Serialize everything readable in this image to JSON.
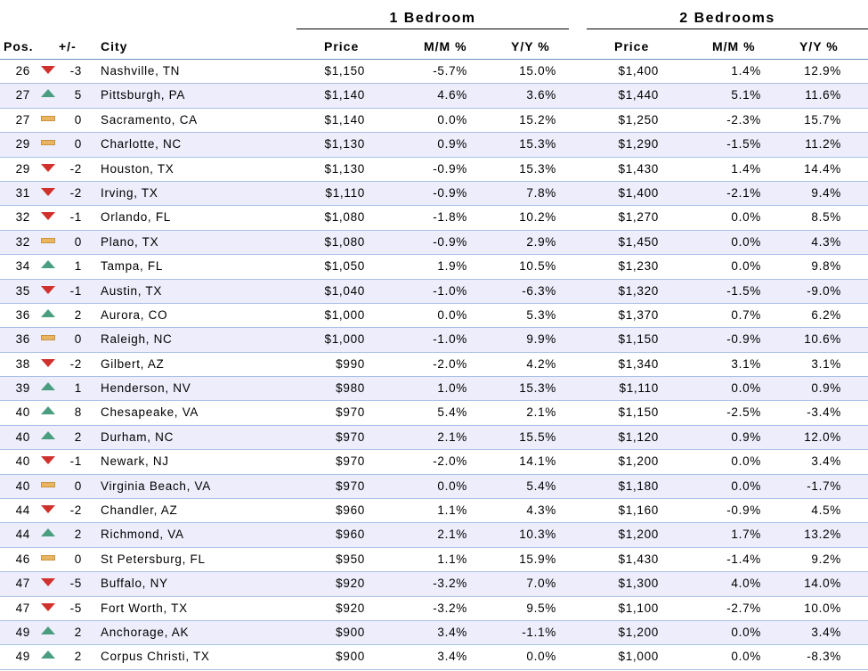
{
  "groups": {
    "one_bedroom": "1 Bedroom",
    "two_bedrooms": "2 Bedrooms"
  },
  "columns": {
    "pos": "Pos.",
    "change": "+/-",
    "city": "City",
    "price1": "Price",
    "mm1": "M/M %",
    "yy1": "Y/Y %",
    "price2": "Price",
    "mm2": "M/M %",
    "yy2": "Y/Y %"
  },
  "colors": {
    "down": "#d0312d",
    "up": "#4a9e7f",
    "flat": "#e9b561",
    "row_alt": "#ededfb",
    "rule": "#6d8fc7"
  },
  "rows": [
    {
      "pos": "26",
      "trend": "down",
      "chg": "-3",
      "city": "Nashville, TN",
      "p1": "$1,150",
      "mm1": "-5.7%",
      "yy1": "15.0%",
      "p2": "$1,400",
      "mm2": "1.4%",
      "yy2": "12.9%"
    },
    {
      "pos": "27",
      "trend": "up",
      "chg": "5",
      "city": "Pittsburgh, PA",
      "p1": "$1,140",
      "mm1": "4.6%",
      "yy1": "3.6%",
      "p2": "$1,440",
      "mm2": "5.1%",
      "yy2": "11.6%"
    },
    {
      "pos": "27",
      "trend": "flat",
      "chg": "0",
      "city": "Sacramento, CA",
      "p1": "$1,140",
      "mm1": "0.0%",
      "yy1": "15.2%",
      "p2": "$1,250",
      "mm2": "-2.3%",
      "yy2": "15.7%"
    },
    {
      "pos": "29",
      "trend": "flat",
      "chg": "0",
      "city": "Charlotte, NC",
      "p1": "$1,130",
      "mm1": "0.9%",
      "yy1": "15.3%",
      "p2": "$1,290",
      "mm2": "-1.5%",
      "yy2": "11.2%"
    },
    {
      "pos": "29",
      "trend": "down",
      "chg": "-2",
      "city": "Houston, TX",
      "p1": "$1,130",
      "mm1": "-0.9%",
      "yy1": "15.3%",
      "p2": "$1,430",
      "mm2": "1.4%",
      "yy2": "14.4%"
    },
    {
      "pos": "31",
      "trend": "down",
      "chg": "-2",
      "city": "Irving, TX",
      "p1": "$1,110",
      "mm1": "-0.9%",
      "yy1": "7.8%",
      "p2": "$1,400",
      "mm2": "-2.1%",
      "yy2": "9.4%"
    },
    {
      "pos": "32",
      "trend": "down",
      "chg": "-1",
      "city": "Orlando, FL",
      "p1": "$1,080",
      "mm1": "-1.8%",
      "yy1": "10.2%",
      "p2": "$1,270",
      "mm2": "0.0%",
      "yy2": "8.5%"
    },
    {
      "pos": "32",
      "trend": "flat",
      "chg": "0",
      "city": "Plano, TX",
      "p1": "$1,080",
      "mm1": "-0.9%",
      "yy1": "2.9%",
      "p2": "$1,450",
      "mm2": "0.0%",
      "yy2": "4.3%"
    },
    {
      "pos": "34",
      "trend": "up",
      "chg": "1",
      "city": "Tampa, FL",
      "p1": "$1,050",
      "mm1": "1.9%",
      "yy1": "10.5%",
      "p2": "$1,230",
      "mm2": "0.0%",
      "yy2": "9.8%"
    },
    {
      "pos": "35",
      "trend": "down",
      "chg": "-1",
      "city": "Austin, TX",
      "p1": "$1,040",
      "mm1": "-1.0%",
      "yy1": "-6.3%",
      "p2": "$1,320",
      "mm2": "-1.5%",
      "yy2": "-9.0%"
    },
    {
      "pos": "36",
      "trend": "up",
      "chg": "2",
      "city": "Aurora, CO",
      "p1": "$1,000",
      "mm1": "0.0%",
      "yy1": "5.3%",
      "p2": "$1,370",
      "mm2": "0.7%",
      "yy2": "6.2%"
    },
    {
      "pos": "36",
      "trend": "flat",
      "chg": "0",
      "city": "Raleigh, NC",
      "p1": "$1,000",
      "mm1": "-1.0%",
      "yy1": "9.9%",
      "p2": "$1,150",
      "mm2": "-0.9%",
      "yy2": "10.6%"
    },
    {
      "pos": "38",
      "trend": "down",
      "chg": "-2",
      "city": "Gilbert, AZ",
      "p1": "$990",
      "mm1": "-2.0%",
      "yy1": "4.2%",
      "p2": "$1,340",
      "mm2": "3.1%",
      "yy2": "3.1%"
    },
    {
      "pos": "39",
      "trend": "up",
      "chg": "1",
      "city": "Henderson, NV",
      "p1": "$980",
      "mm1": "1.0%",
      "yy1": "15.3%",
      "p2": "$1,110",
      "mm2": "0.0%",
      "yy2": "0.9%"
    },
    {
      "pos": "40",
      "trend": "up",
      "chg": "8",
      "city": "Chesapeake, VA",
      "p1": "$970",
      "mm1": "5.4%",
      "yy1": "2.1%",
      "p2": "$1,150",
      "mm2": "-2.5%",
      "yy2": "-3.4%"
    },
    {
      "pos": "40",
      "trend": "up",
      "chg": "2",
      "city": "Durham, NC",
      "p1": "$970",
      "mm1": "2.1%",
      "yy1": "15.5%",
      "p2": "$1,120",
      "mm2": "0.9%",
      "yy2": "12.0%"
    },
    {
      "pos": "40",
      "trend": "down",
      "chg": "-1",
      "city": "Newark, NJ",
      "p1": "$970",
      "mm1": "-2.0%",
      "yy1": "14.1%",
      "p2": "$1,200",
      "mm2": "0.0%",
      "yy2": "3.4%"
    },
    {
      "pos": "40",
      "trend": "flat",
      "chg": "0",
      "city": "Virginia Beach, VA",
      "p1": "$970",
      "mm1": "0.0%",
      "yy1": "5.4%",
      "p2": "$1,180",
      "mm2": "0.0%",
      "yy2": "-1.7%"
    },
    {
      "pos": "44",
      "trend": "down",
      "chg": "-2",
      "city": "Chandler, AZ",
      "p1": "$960",
      "mm1": "1.1%",
      "yy1": "4.3%",
      "p2": "$1,160",
      "mm2": "-0.9%",
      "yy2": "4.5%"
    },
    {
      "pos": "44",
      "trend": "up",
      "chg": "2",
      "city": "Richmond, VA",
      "p1": "$960",
      "mm1": "2.1%",
      "yy1": "10.3%",
      "p2": "$1,200",
      "mm2": "1.7%",
      "yy2": "13.2%"
    },
    {
      "pos": "46",
      "trend": "flat",
      "chg": "0",
      "city": "St Petersburg, FL",
      "p1": "$950",
      "mm1": "1.1%",
      "yy1": "15.9%",
      "p2": "$1,430",
      "mm2": "-1.4%",
      "yy2": "9.2%"
    },
    {
      "pos": "47",
      "trend": "down",
      "chg": "-5",
      "city": "Buffalo, NY",
      "p1": "$920",
      "mm1": "-3.2%",
      "yy1": "7.0%",
      "p2": "$1,300",
      "mm2": "4.0%",
      "yy2": "14.0%"
    },
    {
      "pos": "47",
      "trend": "down",
      "chg": "-5",
      "city": "Fort Worth, TX",
      "p1": "$920",
      "mm1": "-3.2%",
      "yy1": "9.5%",
      "p2": "$1,100",
      "mm2": "-2.7%",
      "yy2": "10.0%"
    },
    {
      "pos": "49",
      "trend": "up",
      "chg": "2",
      "city": "Anchorage, AK",
      "p1": "$900",
      "mm1": "3.4%",
      "yy1": "-1.1%",
      "p2": "$1,200",
      "mm2": "0.0%",
      "yy2": "3.4%"
    },
    {
      "pos": "49",
      "trend": "up",
      "chg": "2",
      "city": "Corpus Christi, TX",
      "p1": "$900",
      "mm1": "3.4%",
      "yy1": "0.0%",
      "p2": "$1,000",
      "mm2": "0.0%",
      "yy2": "-8.3%"
    }
  ]
}
